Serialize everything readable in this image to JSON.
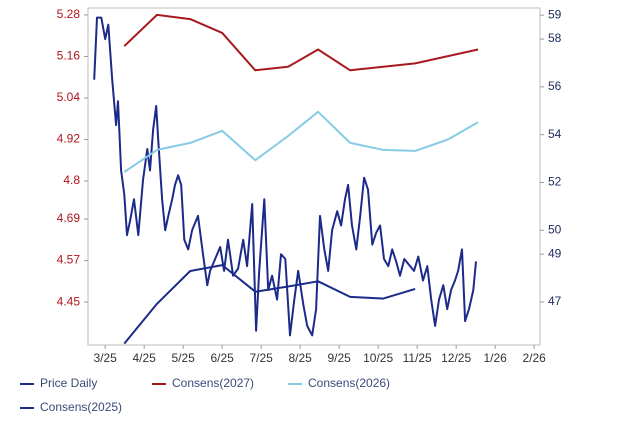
{
  "chart_data": {
    "type": "line",
    "xlim": [
      -0.44,
      11.15
    ],
    "xticks": [
      {
        "value": 0,
        "label": "3/25"
      },
      {
        "value": 1,
        "label": "4/25"
      },
      {
        "value": 2,
        "label": "5/25"
      },
      {
        "value": 3,
        "label": "6/25"
      },
      {
        "value": 4,
        "label": "7/25"
      },
      {
        "value": 5,
        "label": "8/25"
      },
      {
        "value": 6,
        "label": "9/25"
      },
      {
        "value": 7,
        "label": "10/25"
      },
      {
        "value": 8,
        "label": "11/25"
      },
      {
        "value": 9,
        "label": "12/25"
      },
      {
        "value": 10,
        "label": "1/26"
      },
      {
        "value": 11,
        "label": "2/26"
      }
    ],
    "ylim": [
      4.326,
      5.3
    ],
    "yticks": [
      4.45,
      4.57,
      4.69,
      4.8,
      4.92,
      5.04,
      5.16,
      5.28
    ],
    "y2lim": [
      45.2,
      59.3
    ],
    "y2ticks": [
      47,
      49,
      50,
      52,
      54,
      56,
      58,
      59
    ],
    "legend": "bottom",
    "series": [
      {
        "name": "Price Daily",
        "color": "#1c2a8a",
        "axis": "y2",
        "x": [
          -0.28,
          -0.21,
          -0.1,
          0,
          0.08,
          0.18,
          0.28,
          0.33,
          0.41,
          0.49,
          0.56,
          0.64,
          0.74,
          0.85,
          0.97,
          1.08,
          1.15,
          1.23,
          1.31,
          1.36,
          1.46,
          1.54,
          1.62,
          1.72,
          1.79,
          1.87,
          1.95,
          2.03,
          2.13,
          2.23,
          2.38,
          2.51,
          2.62,
          2.69,
          2.82,
          2.95,
          3.05,
          3.15,
          3.28,
          3.41,
          3.54,
          3.64,
          3.77,
          3.87,
          3.95,
          4.08,
          4.18,
          4.28,
          4.41,
          4.51,
          4.62,
          4.74,
          4.85,
          4.95,
          5.08,
          5.18,
          5.31,
          5.41,
          5.51,
          5.62,
          5.72,
          5.82,
          5.95,
          6.05,
          6.15,
          6.23,
          6.33,
          6.44,
          6.54,
          6.64,
          6.74,
          6.85,
          6.95,
          7.05,
          7.15,
          7.26,
          7.36,
          7.46,
          7.56,
          7.67,
          7.82,
          7.92,
          8.03,
          8.15,
          8.26,
          8.36,
          8.46,
          8.56,
          8.67,
          8.77,
          8.87,
          8.97,
          9.05,
          9.15,
          9.23,
          9.33,
          9.44,
          9.51
        ],
        "values": [
          56.3,
          58.9,
          58.9,
          58.0,
          58.6,
          56.3,
          54.4,
          55.4,
          52.5,
          51.5,
          49.8,
          50.4,
          51.3,
          49.8,
          52.1,
          53.4,
          52.5,
          54.2,
          55.2,
          53.8,
          51.3,
          50.0,
          50.6,
          51.3,
          51.9,
          52.3,
          51.9,
          49.6,
          49.2,
          50.0,
          50.6,
          49.0,
          47.7,
          48.3,
          48.8,
          49.3,
          48.3,
          49.6,
          48.1,
          48.4,
          49.6,
          48.5,
          51.1,
          45.8,
          48.3,
          51.3,
          47.5,
          48.1,
          47.1,
          49.0,
          48.8,
          45.6,
          47.1,
          48.3,
          46.9,
          46.0,
          45.6,
          46.7,
          50.6,
          49.2,
          48.3,
          50.0,
          50.8,
          50.2,
          51.3,
          51.9,
          50.2,
          49.2,
          50.6,
          52.2,
          51.7,
          49.4,
          49.9,
          50.2,
          48.8,
          48.5,
          49.2,
          48.7,
          48.1,
          48.8,
          48.5,
          48.3,
          48.9,
          47.9,
          48.5,
          47.1,
          46.0,
          47.1,
          47.7,
          46.7,
          47.5,
          47.9,
          48.3,
          49.2,
          46.2,
          46.7,
          47.5,
          48.7
        ]
      },
      {
        "name": "Consens(2027)",
        "color": "#a8191f",
        "axis": "y",
        "x": [
          0.49,
          1.33,
          2.18,
          3.0,
          3.85,
          4.69,
          5.46,
          6.28,
          7.13,
          7.95,
          9.56
        ],
        "values": [
          5.19,
          5.28,
          5.268,
          5.228,
          5.12,
          5.13,
          5.18,
          5.12,
          5.13,
          5.14,
          5.18
        ]
      },
      {
        "name": "Consens(2026)",
        "color": "#86cbe6",
        "axis": "y",
        "x": [
          0.49,
          1.33,
          2.18,
          3.0,
          3.85,
          4.69,
          5.46,
          6.28,
          7.13,
          7.95,
          8.79,
          9.56
        ],
        "values": [
          4.826,
          4.89,
          4.91,
          4.945,
          4.86,
          4.93,
          5.0,
          4.91,
          4.89,
          4.887,
          4.92,
          4.97
        ]
      },
      {
        "name": "Consens(2025)",
        "color": "#1c2a8a",
        "axis": "y",
        "x": [
          0.49,
          1.33,
          2.18,
          3.0,
          3.85,
          4.69,
          5.46,
          6.28,
          7.13,
          7.95
        ],
        "values": [
          4.33,
          4.445,
          4.54,
          4.557,
          4.48,
          4.495,
          4.51,
          4.465,
          4.46,
          4.488
        ]
      }
    ]
  }
}
